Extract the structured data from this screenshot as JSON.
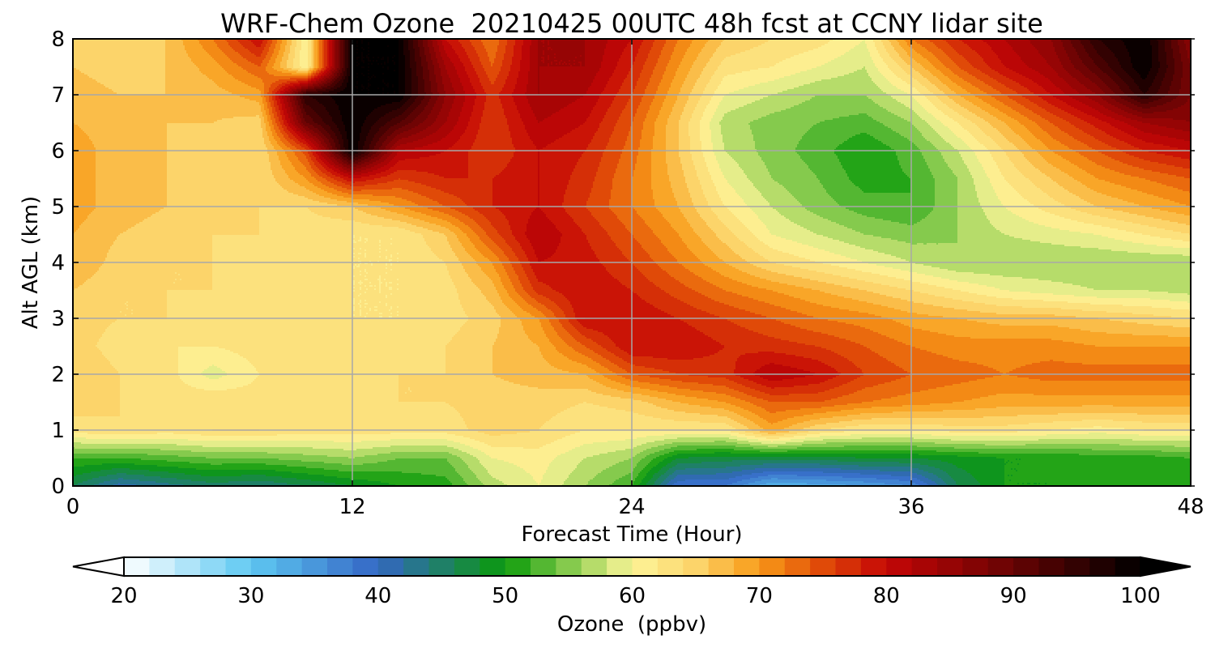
{
  "chart_data": {
    "type": "heatmap",
    "title": "WRF-Chem Ozone  20210425 00UTC 48h fcst at CCNY lidar site",
    "xlabel": "Forecast Time (Hour)",
    "ylabel": "Alt AGL (km)",
    "xlim": [
      0,
      48
    ],
    "ylim": [
      0,
      8
    ],
    "x_ticks": [
      0,
      12,
      24,
      36,
      48
    ],
    "y_ticks": [
      0,
      1,
      2,
      3,
      4,
      5,
      6,
      7,
      8
    ],
    "grid": true,
    "colorbar": {
      "label": "Ozone  (ppbv)",
      "min": 20,
      "max": 100,
      "step": 2,
      "ticks": [
        20,
        30,
        40,
        50,
        60,
        70,
        80,
        90,
        100
      ],
      "extend": "both",
      "stops": [
        {
          "value": 20,
          "color": "#ffffff"
        },
        {
          "value": 30,
          "color": "#5ec8f2"
        },
        {
          "value": 40,
          "color": "#3466c4"
        },
        {
          "value": 50,
          "color": "#0a9a0a"
        },
        {
          "value": 56,
          "color": "#9ed45a"
        },
        {
          "value": 60,
          "color": "#fdf59a"
        },
        {
          "value": 65,
          "color": "#fcd46a"
        },
        {
          "value": 70,
          "color": "#f89a18"
        },
        {
          "value": 75,
          "color": "#e04a08"
        },
        {
          "value": 80,
          "color": "#c40606"
        },
        {
          "value": 88,
          "color": "#7a0404"
        },
        {
          "value": 100,
          "color": "#000000"
        }
      ]
    },
    "x": [
      0,
      2,
      4,
      6,
      8,
      10,
      12,
      14,
      16,
      18,
      20,
      22,
      24,
      26,
      28,
      30,
      32,
      34,
      36,
      38,
      40,
      42,
      44,
      46,
      48
    ],
    "y": [
      0,
      0.5,
      1,
      1.5,
      2,
      2.5,
      3,
      3.5,
      4,
      4.5,
      5,
      5.5,
      6,
      6.5,
      7,
      7.5,
      8
    ],
    "z": [
      [
        46,
        41,
        43,
        45,
        44,
        46,
        48,
        50,
        51,
        57,
        60,
        56,
        52,
        38,
        38,
        32,
        33,
        34,
        36,
        46,
        50,
        50,
        52,
        52,
        52
      ],
      [
        52,
        52,
        53,
        54,
        54,
        55,
        56,
        54,
        54,
        60,
        61,
        58,
        56,
        48,
        47,
        47,
        47,
        48,
        48,
        49,
        50,
        50,
        51,
        51,
        52
      ],
      [
        63,
        64,
        63,
        64,
        64,
        63,
        63,
        63,
        63,
        65,
        64,
        62,
        62,
        62,
        62,
        69,
        64,
        62,
        62,
        63,
        63,
        62,
        61,
        62,
        62
      ],
      [
        65,
        64,
        63,
        64,
        63,
        63,
        63,
        64,
        64,
        65,
        65,
        64,
        65,
        68,
        70,
        74,
        74,
        72,
        71,
        70,
        69,
        69,
        69,
        69,
        69
      ],
      [
        66,
        64,
        63,
        59,
        62,
        63,
        63,
        64,
        64,
        66,
        67,
        68,
        74,
        76,
        77,
        82,
        80,
        76,
        74,
        73,
        72,
        73,
        73,
        73,
        73
      ],
      [
        65,
        63,
        62,
        62,
        63,
        63,
        63,
        63,
        64,
        66,
        68,
        74,
        80,
        80,
        78,
        77,
        76,
        74,
        72,
        71,
        71,
        71,
        70,
        70,
        70
      ],
      [
        65,
        64,
        64,
        63,
        63,
        62,
        62,
        62,
        63,
        65,
        70,
        80,
        80,
        78,
        76,
        74,
        72,
        71,
        69,
        68,
        67,
        67,
        66,
        65,
        64
      ],
      [
        66,
        64,
        64,
        64,
        63,
        63,
        62,
        62,
        63,
        67,
        77,
        80,
        78,
        75,
        72,
        70,
        68,
        66,
        64,
        62,
        60,
        59,
        58,
        58,
        57
      ],
      [
        68,
        65,
        64,
        64,
        63,
        63,
        62,
        62,
        64,
        70,
        80,
        79,
        76,
        72,
        68,
        64,
        62,
        60,
        58,
        56,
        56,
        56,
        56,
        56,
        56
      ],
      [
        68,
        66,
        65,
        64,
        64,
        63,
        62,
        62,
        66,
        75,
        82,
        78,
        74,
        70,
        65,
        60,
        58,
        56,
        55,
        56,
        58,
        59,
        60,
        62,
        64
      ],
      [
        69,
        67,
        66,
        65,
        64,
        64,
        66,
        70,
        74,
        78,
        80,
        76,
        72,
        68,
        62,
        58,
        55,
        53,
        52,
        56,
        60,
        63,
        66,
        68,
        70
      ],
      [
        69,
        67,
        66,
        64,
        64,
        70,
        80,
        76,
        78,
        78,
        80,
        77,
        72,
        67,
        60,
        56,
        54,
        51,
        52,
        56,
        62,
        66,
        70,
        72,
        74
      ],
      [
        69,
        67,
        66,
        65,
        64,
        75,
        100,
        82,
        80,
        76,
        80,
        78,
        73,
        66,
        58,
        55,
        53,
        50,
        53,
        58,
        64,
        70,
        74,
        78,
        80
      ],
      [
        68,
        67,
        66,
        66,
        65,
        90,
        100,
        92,
        84,
        76,
        82,
        80,
        74,
        66,
        57,
        55,
        54,
        53,
        56,
        62,
        68,
        74,
        79,
        84,
        86
      ],
      [
        67,
        66,
        66,
        67,
        69,
        96,
        100,
        100,
        86,
        77,
        84,
        82,
        76,
        68,
        60,
        58,
        56,
        56,
        60,
        68,
        74,
        80,
        86,
        96,
        88
      ],
      [
        66,
        65,
        66,
        69,
        74,
        60,
        100,
        100,
        84,
        74,
        84,
        84,
        78,
        70,
        63,
        62,
        60,
        58,
        66,
        74,
        80,
        84,
        92,
        100,
        88
      ],
      [
        65,
        64,
        66,
        72,
        80,
        60,
        100,
        100,
        80,
        72,
        84,
        84,
        80,
        72,
        66,
        64,
        63,
        60,
        72,
        78,
        82,
        86,
        96,
        100,
        86
      ]
    ]
  }
}
